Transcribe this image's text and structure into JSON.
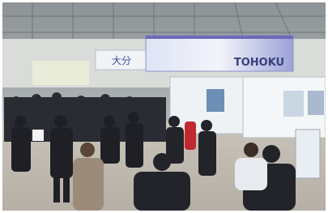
{
  "signs": {
    "main_banner": "TOHOKU",
    "side_banner": "大分"
  }
}
